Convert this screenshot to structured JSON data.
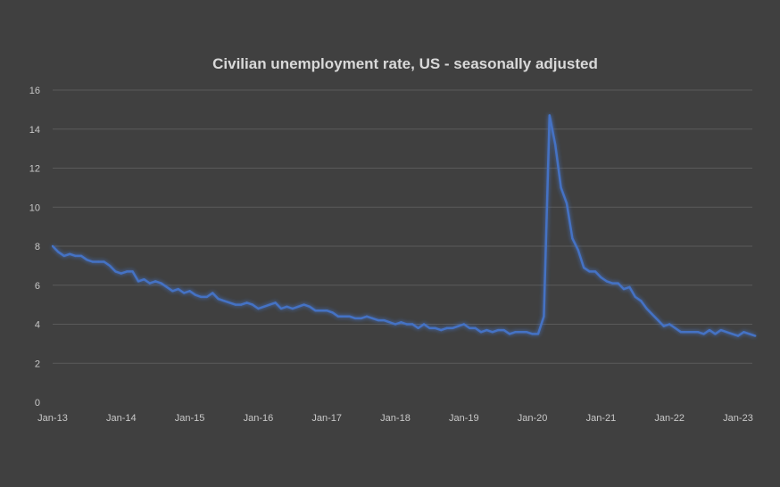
{
  "chart_data": {
    "type": "line",
    "title": "Civilian unemployment rate, US - seasonally adjusted",
    "xlabel": "",
    "ylabel": "",
    "ylim": [
      0,
      16
    ],
    "y_ticks": [
      "0",
      "2",
      "4",
      "6",
      "8",
      "10",
      "12",
      "14",
      "16"
    ],
    "x_tick_labels": [
      "Jan-13",
      "Jan-14",
      "Jan-15",
      "Jan-16",
      "Jan-17",
      "Jan-18",
      "Jan-19",
      "Jan-20",
      "Jan-21",
      "Jan-22",
      "Jan-23"
    ],
    "grid": true,
    "legend": "none",
    "line_color": "#4472c4",
    "background_color": "#404040",
    "x_start": "2013-01",
    "x_end": "2023-04",
    "series": [
      {
        "values": [
          8.0,
          7.7,
          7.5,
          7.6,
          7.5,
          7.5,
          7.3,
          7.2,
          7.2,
          7.2,
          7.0,
          6.7,
          6.6,
          6.7,
          6.7,
          6.2,
          6.3,
          6.1,
          6.2,
          6.1,
          5.9,
          5.7,
          5.8,
          5.6,
          5.7,
          5.5,
          5.4,
          5.4,
          5.6,
          5.3,
          5.2,
          5.1,
          5.0,
          5.0,
          5.1,
          5.0,
          4.8,
          4.9,
          5.0,
          5.1,
          4.8,
          4.9,
          4.8,
          4.9,
          5.0,
          4.9,
          4.7,
          4.7,
          4.7,
          4.6,
          4.4,
          4.4,
          4.4,
          4.3,
          4.3,
          4.4,
          4.3,
          4.2,
          4.2,
          4.1,
          4.0,
          4.1,
          4.0,
          4.0,
          3.8,
          4.0,
          3.8,
          3.8,
          3.7,
          3.8,
          3.8,
          3.9,
          4.0,
          3.8,
          3.8,
          3.6,
          3.7,
          3.6,
          3.7,
          3.7,
          3.5,
          3.6,
          3.6,
          3.6,
          3.5,
          3.5,
          4.4,
          14.7,
          13.2,
          11.0,
          10.2,
          8.4,
          7.8,
          6.9,
          6.7,
          6.7,
          6.4,
          6.2,
          6.1,
          6.1,
          5.8,
          5.9,
          5.4,
          5.2,
          4.8,
          4.5,
          4.2,
          3.9,
          4.0,
          3.8,
          3.6,
          3.6,
          3.6,
          3.6,
          3.5,
          3.7,
          3.5,
          3.7,
          3.6,
          3.5,
          3.4,
          3.6,
          3.5,
          3.4
        ]
      }
    ]
  }
}
